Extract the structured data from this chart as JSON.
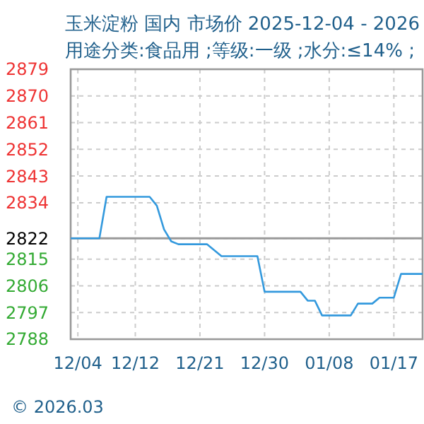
{
  "chart_data": {
    "type": "line",
    "title": "玉米淀粉 国内 市场价 2025-12-04 - 2026",
    "subtitle": "用途分类:食品用 ;等级:一级 ;水分:≤14% ;",
    "x": [
      "2025-12-03",
      "2025-12-07",
      "2025-12-08",
      "2025-12-14",
      "2025-12-15",
      "2025-12-16",
      "2025-12-17",
      "2025-12-18",
      "2025-12-22",
      "2025-12-24",
      "2025-12-29",
      "2025-12-30",
      "2026-01-04",
      "2026-01-05",
      "2026-01-06",
      "2026-01-07",
      "2026-01-11",
      "2026-01-12",
      "2026-01-14",
      "2026-01-15",
      "2026-01-17",
      "2026-01-18",
      "2026-01-21"
    ],
    "series": [
      {
        "color": "#3399dd",
        "values": [
          2822,
          2822,
          2836,
          2836,
          2833,
          2825,
          2821,
          2820,
          2820,
          2816,
          2816,
          2804,
          2804,
          2801,
          2801,
          2796,
          2796,
          2800,
          2800,
          2802,
          2802,
          2810,
          2810
        ]
      }
    ],
    "xlim": [
      "2025-12-03",
      "2026-01-21"
    ],
    "xticks": [
      {
        "value": "2025-12-04",
        "label": "12/04"
      },
      {
        "value": "2025-12-12",
        "label": "12/12"
      },
      {
        "value": "2025-12-21",
        "label": "12/21"
      },
      {
        "value": "2025-12-30",
        "label": "12/30"
      },
      {
        "value": "2026-01-08",
        "label": "01/08"
      },
      {
        "value": "2026-01-17",
        "label": "01/17"
      }
    ],
    "ylim": [
      2788,
      2879
    ],
    "yticks": [
      2788,
      2797,
      2806,
      2815,
      2822,
      2834,
      2843,
      2852,
      2861,
      2870,
      2879
    ],
    "ref_lines": [
      {
        "axis": "y",
        "value": 2822,
        "color": "#999999"
      }
    ],
    "grid": true,
    "marker": "none",
    "line_style": "solid",
    "annotations": [
      "© 2026.03"
    ]
  }
}
